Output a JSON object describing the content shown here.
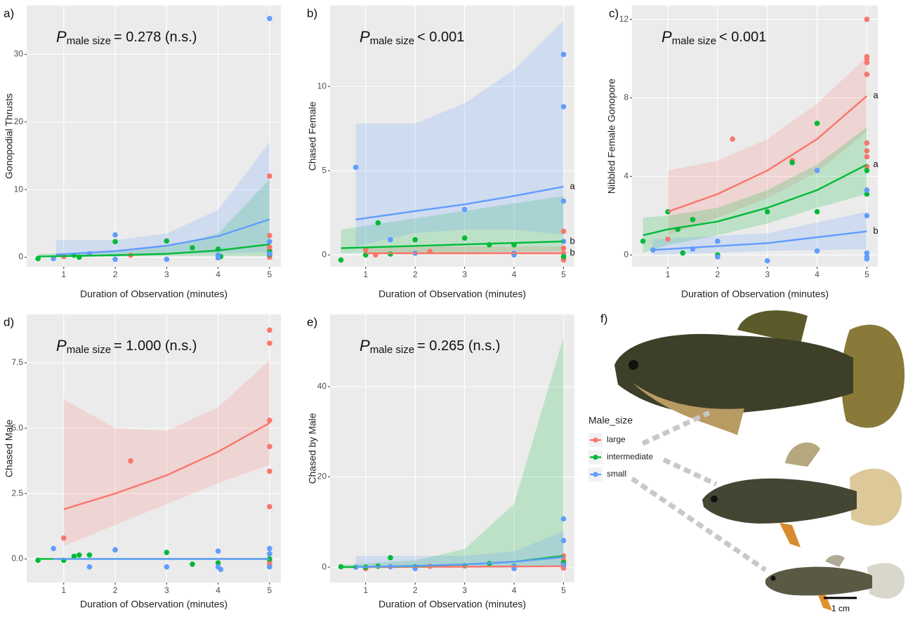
{
  "chart_data": [
    {
      "type": "scatter",
      "panel": "a)",
      "stat": {
        "symbol": "P",
        "subscript": "male size",
        "text": "= 0.278 (n.s.)"
      },
      "xlabel": "Duration of Observation (minutes)",
      "ylabel": "Gonopodial Thrusts",
      "xlim": [
        0.28,
        5.22
      ],
      "ylim": [
        -1.4,
        37.2
      ],
      "xticks": [
        1,
        2,
        3,
        4,
        5
      ],
      "yticks": [
        0,
        10,
        20,
        30
      ],
      "grid": true,
      "series": [
        {
          "name": "large",
          "color": "#F8766D",
          "x": [
            1,
            2.3,
            5,
            5,
            5,
            5,
            5,
            5,
            5
          ],
          "values": [
            0.1,
            0.3,
            12,
            3.2,
            1.5,
            1,
            0.5,
            0,
            0.2
          ]
        },
        {
          "name": "intermediate",
          "color": "#00BA38",
          "x": [
            0.5,
            1.2,
            1.3,
            2,
            3,
            3.5,
            4,
            4.05,
            5,
            5
          ],
          "values": [
            -0.2,
            0.3,
            0,
            2.3,
            2.4,
            1.4,
            1.2,
            0.1,
            0.4,
            0.8
          ],
          "fit": {
            "x": [
              0.5,
              2,
              3,
              4,
              5
            ],
            "y": [
              0.1,
              0.3,
              0.5,
              1,
              1.9
            ],
            "lower": [
              0,
              0.1,
              0.2,
              0.2,
              0.2
            ],
            "upper": [
              0.5,
              0.8,
              1.5,
              3.5,
              11.5
            ]
          }
        },
        {
          "name": "small",
          "color": "#619CFF",
          "x": [
            0.8,
            1.5,
            2,
            2,
            3,
            4,
            4,
            5,
            5,
            5
          ],
          "values": [
            -0.2,
            0.5,
            3.3,
            -0.3,
            -0.3,
            -0.1,
            0.3,
            35.3,
            2.3,
            0.5
          ],
          "fit": {
            "x": [
              0.85,
              2,
              3,
              4,
              5
            ],
            "y": [
              0.4,
              0.9,
              1.7,
              3.1,
              5.6
            ],
            "lower": [
              0.1,
              0.3,
              0.5,
              0.6,
              0.8
            ],
            "upper": [
              2.5,
              2.5,
              3.5,
              7,
              17
            ]
          }
        }
      ]
    },
    {
      "type": "scatter",
      "panel": "b)",
      "stat": {
        "symbol": "P",
        "subscript": "male size",
        "text": "< 0.001"
      },
      "xlabel": "Duration of Observation (minutes)",
      "ylabel": "Chased Female",
      "xlim": [
        0.28,
        5.22
      ],
      "ylim": [
        -0.7,
        14.8
      ],
      "xticks": [
        1,
        2,
        3,
        4,
        5
      ],
      "yticks": [
        0,
        5,
        10
      ],
      "grid": true,
      "series": [
        {
          "name": "large",
          "color": "#F8766D",
          "x": [
            1,
            1.2,
            2.3,
            5,
            5,
            5,
            5,
            5
          ],
          "values": [
            0.3,
            0,
            0.2,
            1.4,
            0.4,
            0.1,
            -0.2,
            -0.3
          ],
          "fit": {
            "x": [
              1,
              5
            ],
            "y": [
              0.1,
              0.1
            ],
            "lower": [
              0,
              0
            ],
            "upper": [
              0.5,
              0.5
            ],
            "label": "b"
          }
        },
        {
          "name": "intermediate",
          "color": "#00BA38",
          "x": [
            0.5,
            1,
            1.25,
            1.5,
            2,
            3,
            3.5,
            4,
            5
          ],
          "values": [
            -0.3,
            0,
            1.9,
            0.05,
            0.9,
            1,
            0.6,
            0.6,
            -0.1
          ],
          "fit": {
            "x": [
              0.5,
              5
            ],
            "y": [
              0.4,
              0.8
            ],
            "lower": [
              0.1,
              0.2
            ],
            "upper": [
              1.5,
              3.5
            ],
            "label": "b"
          }
        },
        {
          "name": "small",
          "color": "#619CFF",
          "x": [
            0.8,
            1.5,
            2,
            3,
            4,
            4,
            5,
            5,
            5,
            5
          ],
          "values": [
            5.2,
            0.9,
            0.1,
            2.7,
            0.1,
            0,
            11.9,
            8.8,
            3.2,
            0.8
          ],
          "fit": {
            "x": [
              0.8,
              2,
              3,
              4,
              5
            ],
            "y": [
              2.1,
              2.6,
              3,
              3.5,
              4.05
            ],
            "lower": [
              0.5,
              1.3,
              1.5,
              1.5,
              1.2
            ],
            "upper": [
              7.8,
              7.8,
              9,
              11,
              13.9
            ],
            "label": "a"
          }
        }
      ]
    },
    {
      "type": "scatter",
      "panel": "c)",
      "stat": {
        "symbol": "P",
        "subscript": "male size",
        "text": "< 0.001"
      },
      "xlabel": "Duration of Observation (minutes)",
      "ylabel": "Nibbled Female Gonopore",
      "xlim": [
        0.28,
        5.22
      ],
      "ylim": [
        -0.6,
        12.7
      ],
      "xticks": [
        1,
        2,
        3,
        4,
        5
      ],
      "yticks": [
        0,
        4,
        8,
        12
      ],
      "grid": true,
      "series": [
        {
          "name": "large",
          "color": "#F8766D",
          "x": [
            1,
            2.3,
            3.5,
            5,
            5,
            5,
            5,
            5,
            5,
            5,
            5,
            5,
            5
          ],
          "values": [
            0.8,
            5.9,
            4.8,
            12,
            10.1,
            10,
            9.8,
            9.2,
            5.7,
            5.3,
            5,
            4.5,
            3.3
          ],
          "fit": {
            "x": [
              1,
              2,
              3,
              4,
              5
            ],
            "y": [
              2.2,
              3.1,
              4.3,
              5.9,
              8.1
            ],
            "lower": [
              1,
              1.9,
              2.9,
              4.2,
              6.3
            ],
            "upper": [
              4.3,
              4.8,
              5.9,
              7.7,
              10.1
            ],
            "label": "a"
          }
        },
        {
          "name": "intermediate",
          "color": "#00BA38",
          "x": [
            0.5,
            1,
            1.2,
            1.3,
            1.5,
            2,
            3,
            3.5,
            4,
            4,
            5,
            5
          ],
          "values": [
            0.7,
            2.2,
            1.3,
            0.1,
            1.8,
            0,
            2.2,
            4.7,
            6.7,
            2.2,
            4.3,
            3.1
          ],
          "fit": {
            "x": [
              0.5,
              1,
              2,
              3,
              4,
              5
            ],
            "y": [
              1,
              1.3,
              1.7,
              2.4,
              3.3,
              4.6
            ],
            "lower": [
              0.1,
              0.5,
              1,
              1.6,
              2.4,
              3.1
            ],
            "upper": [
              1.9,
              2,
              2.4,
              3.3,
              4.6,
              6.5
            ],
            "label": "a"
          }
        },
        {
          "name": "small",
          "color": "#619CFF",
          "x": [
            0.7,
            1.5,
            2,
            2,
            3,
            4,
            4,
            5,
            5,
            5,
            5,
            5
          ],
          "values": [
            0.25,
            0.3,
            0.7,
            -0.1,
            -0.3,
            4.3,
            0.2,
            2,
            3.3,
            0.1,
            -0.1,
            -0.2
          ],
          "fit": {
            "x": [
              0.7,
              3,
              5
            ],
            "y": [
              0.25,
              0.6,
              1.2
            ],
            "lower": [
              0,
              0.2,
              0.3
            ],
            "upper": [
              0.8,
              1.1,
              2.2
            ],
            "label": "b"
          }
        }
      ]
    },
    {
      "type": "scatter",
      "panel": "d)",
      "stat": {
        "symbol": "P",
        "subscript": "male size",
        "text": "= 1.000 (n.s.)"
      },
      "xlabel": "Duration of Observation (minutes)",
      "ylabel": "Chased Male",
      "xlim": [
        0.28,
        5.22
      ],
      "ylim": [
        -0.9,
        9.35
      ],
      "xticks": [
        1,
        2,
        3,
        4,
        5
      ],
      "yticks": [
        {
          "value": 0,
          "label": "0.0"
        },
        {
          "value": 2.5,
          "label": "2.5"
        },
        {
          "value": 5,
          "label": "5.0"
        },
        {
          "value": 7.5,
          "label": "7.5"
        }
      ],
      "grid": true,
      "series": [
        {
          "name": "large",
          "color": "#F8766D",
          "x": [
            1,
            2.3,
            5,
            5,
            5,
            5,
            5,
            5,
            5,
            5
          ],
          "values": [
            0.8,
            3.75,
            8.75,
            8.25,
            5.3,
            4.3,
            3.35,
            2,
            -0.1,
            -0.2
          ],
          "fit": {
            "x": [
              1,
              2,
              3,
              4,
              5
            ],
            "y": [
              1.9,
              2.5,
              3.2,
              4.1,
              5.2
            ],
            "lower": [
              0.5,
              1.3,
              2.1,
              2.9,
              3.6
            ],
            "upper": [
              6.1,
              5,
              4.9,
              5.8,
              7.6
            ]
          }
        },
        {
          "name": "intermediate",
          "color": "#00BA38",
          "x": [
            0.5,
            1,
            1.2,
            1.3,
            1.5,
            2,
            3,
            3.5,
            4,
            5
          ],
          "values": [
            -0.05,
            -0.05,
            0.1,
            0.15,
            0.15,
            0.35,
            0.25,
            -0.2,
            -0.15,
            0
          ],
          "fit": {
            "x": [
              0.5,
              5
            ],
            "y": [
              0,
              0
            ]
          }
        },
        {
          "name": "small",
          "color": "#619CFF",
          "x": [
            0.8,
            1.5,
            2,
            3,
            4,
            4,
            4.05,
            5,
            5,
            5
          ],
          "values": [
            0.4,
            -0.3,
            0.35,
            -0.3,
            0.3,
            -0.3,
            -0.4,
            0.4,
            0.2,
            -0.3
          ],
          "fit": {
            "x": [
              0.8,
              5
            ],
            "y": [
              0,
              0
            ]
          }
        }
      ]
    },
    {
      "type": "scatter",
      "panel": "e)",
      "stat": {
        "symbol": "P",
        "subscript": "male size",
        "text": "= 0.265 (n.s.)"
      },
      "xlabel": "Duration of Observation (minutes)",
      "ylabel": "Chased by Male",
      "xlim": [
        0.28,
        5.22
      ],
      "ylim": [
        -3.4,
        56
      ],
      "xticks": [
        1,
        2,
        3,
        4,
        5
      ],
      "yticks": [
        0,
        20,
        40
      ],
      "grid": true,
      "series": [
        {
          "name": "large",
          "color": "#F8766D",
          "x": [
            1,
            2.3,
            5,
            5,
            5,
            5,
            5
          ],
          "values": [
            -0.3,
            0.2,
            2.5,
            1.5,
            0.5,
            0,
            -0.2
          ],
          "fit": {
            "x": [
              1,
              5
            ],
            "y": [
              0,
              0.2
            ]
          }
        },
        {
          "name": "intermediate",
          "color": "#00BA38",
          "x": [
            0.5,
            1,
            1.25,
            1.5,
            2,
            3,
            3.5,
            4,
            5
          ],
          "values": [
            0.1,
            0,
            0.2,
            2.1,
            0.1,
            0.3,
            0.8,
            0.2,
            1
          ],
          "fit": {
            "x": [
              0.5,
              2,
              3,
              4,
              5
            ],
            "y": [
              0,
              0.2,
              0.6,
              1.2,
              2.5
            ],
            "lower": [
              0,
              0,
              0,
              0,
              0.1
            ],
            "upper": [
              0.5,
              1.5,
              4,
              14,
              51
            ]
          }
        },
        {
          "name": "small",
          "color": "#619CFF",
          "x": [
            0.8,
            1.5,
            2,
            4,
            4,
            4,
            5,
            5,
            5
          ],
          "values": [
            0,
            0.1,
            -0.3,
            0,
            -0.3,
            0.1,
            10.7,
            5.9,
            0.5
          ],
          "fit": {
            "x": [
              0.8,
              2,
              3,
              4,
              5
            ],
            "y": [
              0,
              0.3,
              0.6,
              1.2,
              2.2
            ],
            "lower": [
              0,
              0,
              0,
              0,
              0
            ],
            "upper": [
              2.5,
              2.5,
              2.5,
              3.5,
              8
            ]
          }
        }
      ]
    }
  ],
  "legend": {
    "title": "Male_size"
  },
  "panel_f": {
    "label": "f)",
    "scale_bar": "1 cm"
  }
}
